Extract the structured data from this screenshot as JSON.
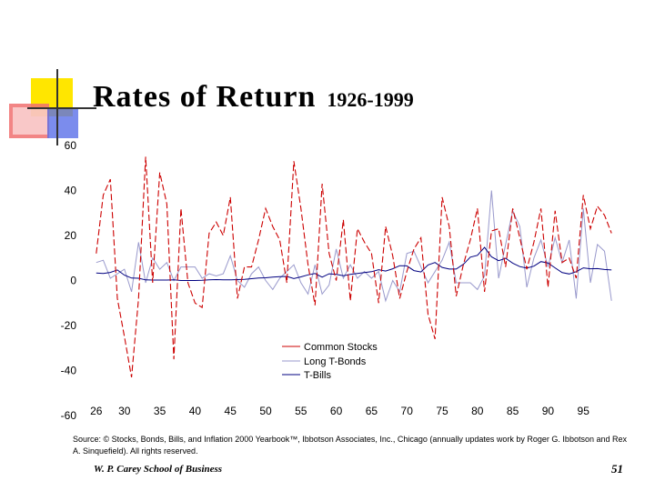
{
  "title": "Rates of Return",
  "title_years": "1926-1999",
  "source": "Source: © Stocks, Bonds, Bills, and Inflation 2000 Yearbook™, Ibbotson Associates, Inc., Chicago (annually updates work by Roger G. Ibbotson and Rex A. Sinquefield). All rights reserved.",
  "footer": {
    "school": "W. P. Carey School of Business",
    "page_number": "51"
  },
  "colors": {
    "stocks": "#cc0000",
    "bonds": "#9999cc",
    "bills": "#000080",
    "deco_yellow": "#ffe600",
    "deco_red": "#f07070",
    "deco_blue": "#5a6fe8"
  },
  "chart_data": {
    "type": "line",
    "ylim": [
      -60,
      60
    ],
    "yticks": [
      60,
      40,
      20,
      0,
      -20,
      -40,
      -60
    ],
    "xlim": [
      1925,
      2000
    ],
    "xticks": [
      1926,
      1930,
      1935,
      1940,
      1945,
      1950,
      1955,
      1960,
      1965,
      1970,
      1975,
      1980,
      1985,
      1990,
      1995
    ],
    "xtick_labels": [
      "26",
      "30",
      "35",
      "40",
      "45",
      "50",
      "55",
      "60",
      "65",
      "70",
      "75",
      "80",
      "85",
      "90",
      "95"
    ],
    "legend_position": "bottom-center",
    "series": [
      {
        "name": "Common Stocks",
        "key": "stocks",
        "style": "dashed",
        "x": [
          1926,
          1927,
          1928,
          1929,
          1930,
          1931,
          1932,
          1933,
          1934,
          1935,
          1936,
          1937,
          1938,
          1939,
          1940,
          1941,
          1942,
          1943,
          1944,
          1945,
          1946,
          1947,
          1948,
          1949,
          1950,
          1951,
          1952,
          1953,
          1954,
          1955,
          1956,
          1957,
          1958,
          1959,
          1960,
          1961,
          1962,
          1963,
          1964,
          1965,
          1966,
          1967,
          1968,
          1969,
          1970,
          1971,
          1972,
          1973,
          1974,
          1975,
          1976,
          1977,
          1978,
          1979,
          1980,
          1981,
          1982,
          1983,
          1984,
          1985,
          1986,
          1987,
          1988,
          1989,
          1990,
          1991,
          1992,
          1993,
          1994,
          1995,
          1996,
          1997,
          1998,
          1999
        ],
        "values": [
          12,
          38,
          45,
          -8,
          -25,
          -43,
          -8,
          55,
          -1,
          48,
          34,
          -35,
          32,
          -1,
          -10,
          -12,
          21,
          26,
          20,
          37,
          -8,
          6,
          6,
          18,
          32,
          24,
          18,
          -1,
          53,
          32,
          7,
          -11,
          43,
          12,
          0,
          27,
          -9,
          23,
          17,
          12,
          -10,
          24,
          11,
          -8,
          4,
          14,
          19,
          -15,
          -26,
          37,
          24,
          -7,
          7,
          18,
          32,
          -5,
          22,
          23,
          6,
          32,
          19,
          5,
          17,
          32,
          -3,
          31,
          8,
          10,
          1,
          38,
          23,
          33,
          29,
          21
        ]
      },
      {
        "name": "Long T-Bonds",
        "key": "bonds",
        "style": "solid",
        "x": [
          1926,
          1927,
          1928,
          1929,
          1930,
          1931,
          1932,
          1933,
          1934,
          1935,
          1936,
          1937,
          1938,
          1939,
          1940,
          1941,
          1942,
          1943,
          1944,
          1945,
          1946,
          1947,
          1948,
          1949,
          1950,
          1951,
          1952,
          1953,
          1954,
          1955,
          1956,
          1957,
          1958,
          1959,
          1960,
          1961,
          1962,
          1963,
          1964,
          1965,
          1966,
          1967,
          1968,
          1969,
          1970,
          1971,
          1972,
          1973,
          1974,
          1975,
          1976,
          1977,
          1978,
          1979,
          1980,
          1981,
          1982,
          1983,
          1984,
          1985,
          1986,
          1987,
          1988,
          1989,
          1990,
          1991,
          1992,
          1993,
          1994,
          1995,
          1996,
          1997,
          1998,
          1999
        ],
        "values": [
          8,
          9,
          1,
          3,
          5,
          -5,
          17,
          -1,
          10,
          5,
          8,
          0,
          6,
          6,
          6,
          1,
          3,
          2,
          3,
          11,
          0,
          -3,
          3,
          6,
          0,
          -4,
          1,
          4,
          7,
          -1,
          -6,
          7,
          -6,
          -2,
          14,
          1,
          7,
          1,
          4,
          1,
          4,
          -9,
          0,
          -5,
          12,
          13,
          6,
          -1,
          4,
          9,
          17,
          -1,
          -1,
          -1,
          -4,
          2,
          40,
          1,
          16,
          31,
          24,
          -3,
          10,
          18,
          6,
          19,
          8,
          18,
          -8,
          32,
          -1,
          16,
          13,
          -9
        ]
      },
      {
        "name": "T-Bills",
        "key": "bills",
        "style": "solid",
        "x": [
          1926,
          1927,
          1928,
          1929,
          1930,
          1931,
          1932,
          1933,
          1934,
          1935,
          1936,
          1937,
          1938,
          1939,
          1940,
          1941,
          1942,
          1943,
          1944,
          1945,
          1946,
          1947,
          1948,
          1949,
          1950,
          1951,
          1952,
          1953,
          1954,
          1955,
          1956,
          1957,
          1958,
          1959,
          1960,
          1961,
          1962,
          1963,
          1964,
          1965,
          1966,
          1967,
          1968,
          1969,
          1970,
          1971,
          1972,
          1973,
          1974,
          1975,
          1976,
          1977,
          1978,
          1979,
          1980,
          1981,
          1982,
          1983,
          1984,
          1985,
          1986,
          1987,
          1988,
          1989,
          1990,
          1991,
          1992,
          1993,
          1994,
          1995,
          1996,
          1997,
          1998,
          1999
        ],
        "values": [
          3.3,
          3.1,
          3.6,
          4.7,
          2.4,
          1.1,
          1.0,
          0.3,
          0.2,
          0.2,
          0.2,
          0.3,
          0.0,
          0.0,
          0.0,
          0.1,
          0.3,
          0.4,
          0.3,
          0.3,
          0.4,
          0.5,
          0.8,
          1.1,
          1.2,
          1.5,
          1.7,
          1.8,
          0.9,
          1.6,
          2.5,
          3.1,
          1.5,
          3.0,
          2.7,
          2.1,
          2.7,
          3.1,
          3.5,
          3.9,
          4.8,
          4.2,
          5.2,
          6.6,
          6.5,
          4.4,
          3.8,
          6.9,
          8.0,
          5.8,
          5.1,
          5.1,
          7.2,
          10.4,
          11.2,
          14.7,
          10.5,
          8.8,
          9.9,
          7.7,
          6.2,
          5.5,
          6.4,
          8.4,
          7.8,
          5.6,
          3.5,
          2.9,
          3.9,
          5.6,
          5.2,
          5.3,
          4.9,
          4.7
        ]
      }
    ]
  }
}
